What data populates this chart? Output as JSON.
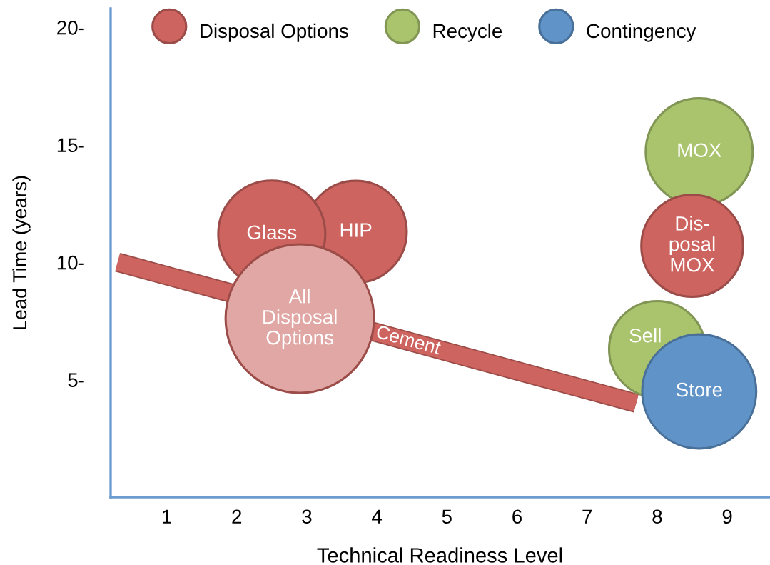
{
  "chart_data": {
    "type": "bubble",
    "xlabel": "Technical Readiness Level",
    "ylabel": "Lead Time (years)",
    "xlim": [
      0.2,
      9.6
    ],
    "ylim": [
      0,
      20.8
    ],
    "xticks": [
      1,
      2,
      3,
      4,
      5,
      6,
      7,
      8,
      9
    ],
    "yticks": [
      {
        "value": 5,
        "label": "5-"
      },
      {
        "value": 10,
        "label": "10-"
      },
      {
        "value": 15,
        "label": "15-"
      },
      {
        "value": 20,
        "label": "20-"
      }
    ],
    "legend": "top left",
    "series": [
      {
        "name": "Disposal Options",
        "color": "#cd645f",
        "colors": [
          "#cd645f",
          "#cd645f",
          "#e0a7a4",
          "#cd645f"
        ],
        "x": [
          2.5,
          3.7,
          2.9,
          8.5
        ],
        "values": [
          11.2,
          11.3,
          7.6,
          10.7
        ],
        "sizes": [
          0.52,
          0.47,
          1,
          0.47
        ],
        "value_labels": [
          "Glass",
          "HIP",
          "All\nDisposal\nOptions",
          "Dis-\nposal\nMOX"
        ]
      },
      {
        "name": "Recycle",
        "color": "#aac46e",
        "x": [
          8.6,
          8.0
        ],
        "values": [
          14.7,
          6.3
        ],
        "sizes": [
          0.52,
          0.42
        ],
        "value_labels": [
          "MOX",
          "Sell"
        ]
      },
      {
        "name": "Contingency",
        "color": "#6094c8",
        "x": [
          8.6
        ],
        "values": [
          4.5
        ],
        "sizes": [
          0.59
        ],
        "value_labels": [
          "Store"
        ]
      },
      {
        "name": "Cement",
        "type": "line",
        "color": "#cd645f",
        "x": [
          0.3,
          7.7
        ],
        "values": [
          10.0,
          4.0
        ]
      }
    ]
  }
}
